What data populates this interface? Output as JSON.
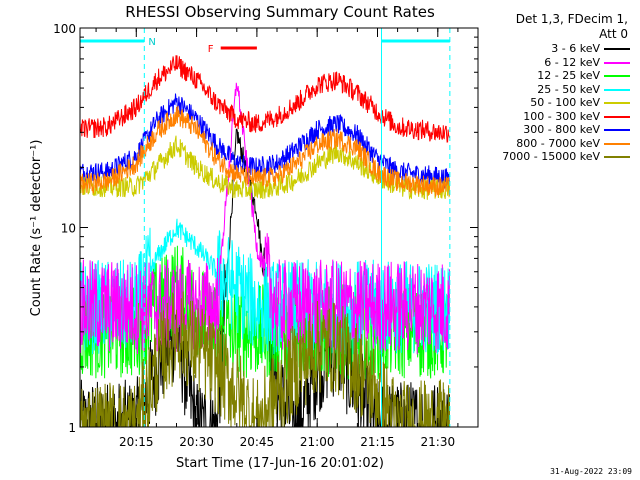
{
  "chart_data": {
    "type": "line",
    "title": "RHESSI Observing Summary Count Rates",
    "xlabel": "Start Time (17-Jun-16 20:01:02)",
    "ylabel": "Count Rate (s⁻¹ detector⁻¹)",
    "y_scale": "log",
    "ylim": [
      1,
      100
    ],
    "xlim": [
      "20:01",
      "21:40"
    ],
    "y_ticks": [
      "1",
      "10",
      "100"
    ],
    "x_ticks": [
      "20:15",
      "20:30",
      "20:45",
      "21:00",
      "21:15",
      "21:30"
    ],
    "x_tick_minutes": [
      15,
      30,
      45,
      60,
      75,
      90
    ],
    "x_range_minutes": [
      1,
      100
    ],
    "grid": false,
    "legend_position": "top-right",
    "legend_header": [
      "Det 1,3, FDecim 1,",
      "Att 0"
    ],
    "annotations": {
      "night_label": "N",
      "night_periods_minutes": [
        [
          1,
          17
        ],
        [
          76,
          93
        ]
      ],
      "flare_label": "F",
      "flare_period_minutes": [
        36,
        45
      ],
      "saa_marker_minutes": [
        17,
        76,
        93
      ]
    },
    "x_minutes": [
      1,
      8,
      15,
      20,
      25,
      30,
      35,
      40,
      45,
      50,
      55,
      60,
      65,
      70,
      75,
      80,
      85,
      90,
      93
    ],
    "series": [
      {
        "name": "3 - 6 keV",
        "color": "#000000",
        "values": [
          1.0,
          1.0,
          1.0,
          2.0,
          3.0,
          1.0,
          1.0,
          30.0,
          12.0,
          1.5,
          1.0,
          2.0,
          2.5,
          1.5,
          1.0,
          1.0,
          1.0,
          1.0,
          1.0
        ]
      },
      {
        "name": "6 - 12 keV",
        "color": "#ff00ff",
        "values": [
          4.0,
          4.0,
          4.0,
          4.0,
          4.0,
          4.0,
          4.0,
          55.0,
          8.0,
          4.0,
          4.0,
          4.0,
          4.0,
          4.0,
          4.0,
          4.0,
          4.0,
          4.0,
          4.0
        ]
      },
      {
        "name": "12 - 25 keV",
        "color": "#00ff00",
        "values": [
          3.0,
          3.0,
          3.0,
          4.0,
          5.0,
          4.0,
          3.0,
          3.0,
          3.0,
          3.0,
          3.0,
          3.0,
          3.0,
          3.0,
          3.0,
          3.0,
          3.0,
          3.0,
          3.0
        ]
      },
      {
        "name": "25 - 50 keV",
        "color": "#00ffff",
        "values": [
          4.0,
          4.0,
          4.0,
          7.0,
          10.0,
          8.0,
          6.0,
          5.0,
          4.0,
          4.0,
          4.0,
          4.0,
          4.0,
          4.0,
          4.0,
          4.0,
          4.0,
          4.0,
          4.0
        ]
      },
      {
        "name": "50 - 100 keV",
        "color": "#cccc00",
        "values": [
          16.0,
          16.0,
          16.0,
          20.0,
          26.0,
          20.0,
          17.0,
          15.5,
          15.5,
          16.0,
          17.5,
          21.0,
          24.0,
          21.0,
          18.0,
          16.0,
          15.5,
          15.5,
          15.5
        ]
      },
      {
        "name": "100 - 300 keV",
        "color": "#ff0000",
        "values": [
          31.0,
          32.0,
          40.0,
          55.0,
          66.0,
          55.0,
          42.0,
          35.0,
          33.0,
          36.0,
          42.0,
          52.0,
          55.0,
          47.0,
          38.0,
          32.0,
          31.0,
          30.0,
          30.0
        ]
      },
      {
        "name": "300 - 800 keV",
        "color": "#0000ff",
        "values": [
          19.0,
          19.0,
          23.0,
          34.0,
          43.0,
          35.0,
          26.0,
          21.0,
          20.0,
          21.0,
          25.0,
          31.0,
          33.0,
          29.0,
          22.0,
          19.0,
          18.5,
          18.0,
          17.5
        ]
      },
      {
        "name": "800 - 7000 keV",
        "color": "#ff8000",
        "values": [
          16.5,
          17.0,
          21.0,
          30.0,
          37.0,
          31.0,
          22.0,
          18.5,
          17.5,
          18.0,
          21.0,
          26.0,
          28.0,
          25.0,
          19.0,
          17.0,
          16.5,
          16.0,
          16.0
        ]
      },
      {
        "name": "7000 - 15000 keV",
        "color": "#808000",
        "values": [
          1.0,
          1.0,
          1.0,
          2.0,
          3.0,
          2.5,
          2.0,
          1.5,
          1.0,
          1.5,
          2.0,
          2.5,
          2.5,
          2.0,
          1.5,
          1.0,
          1.0,
          1.0,
          1.0
        ]
      }
    ]
  },
  "footer_timestamp": "31-Aug-2022 23:09"
}
